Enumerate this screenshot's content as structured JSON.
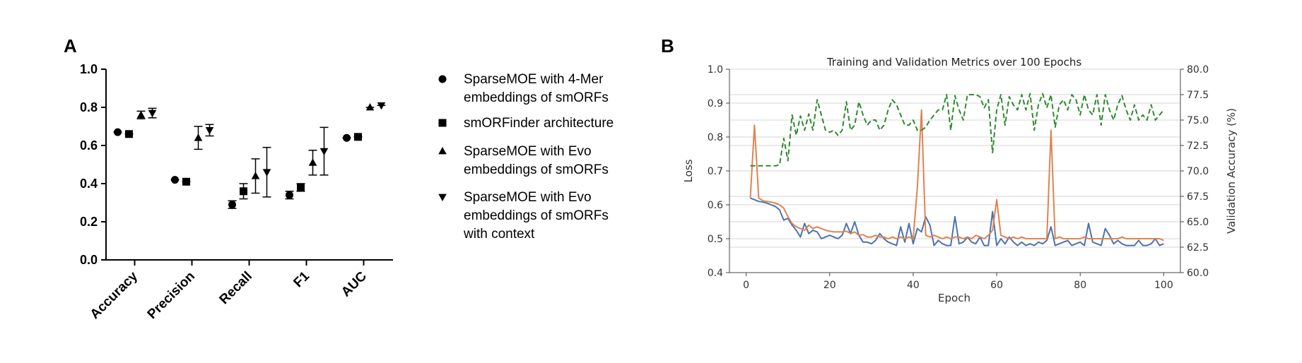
{
  "panel_a": {
    "label": "A",
    "legend": [
      {
        "marker": "circle",
        "lines": [
          "SparseMOE with 4-Mer",
          "embeddings of smORFs"
        ]
      },
      {
        "marker": "square",
        "lines": [
          "smORFinder architecture"
        ]
      },
      {
        "marker": "triangle-up",
        "lines": [
          "SparseMOE with Evo",
          "embeddings of smORFs"
        ]
      },
      {
        "marker": "triangle-down",
        "lines": [
          "SparseMOE with Evo",
          "embeddings of smORFs",
          "with context"
        ]
      }
    ]
  },
  "panel_b": {
    "label": "B"
  },
  "chart_data": [
    {
      "type": "scatter",
      "title": "",
      "xlabel": "",
      "ylabel": "",
      "categories": [
        "Accuracy",
        "Precision",
        "Recall",
        "F1",
        "AUC"
      ],
      "ylim": [
        0,
        1.0
      ],
      "yticks": [
        "0.0",
        "0.2",
        "0.4",
        "0.6",
        "0.8",
        "1.0"
      ],
      "error_bars": true,
      "series": [
        {
          "marker": "circle",
          "values": [
            0.67,
            0.42,
            0.29,
            0.34,
            0.64
          ],
          "err": [
            0.005,
            0.005,
            0.02,
            0.02,
            0.01
          ]
        },
        {
          "marker": "square",
          "values": [
            0.66,
            0.41,
            0.36,
            0.38,
            0.645
          ],
          "err": [
            0.005,
            0.005,
            0.04,
            0.02,
            0.005
          ]
        },
        {
          "marker": "triangle-up",
          "values": [
            0.76,
            0.64,
            0.44,
            0.51,
            0.8
          ],
          "err": [
            0.02,
            0.06,
            0.09,
            0.065,
            0.01
          ]
        },
        {
          "marker": "triangle-down",
          "values": [
            0.77,
            0.68,
            0.46,
            0.57,
            0.81
          ],
          "err": [
            0.025,
            0.03,
            0.13,
            0.125,
            0.01
          ]
        }
      ]
    },
    {
      "type": "line",
      "title": "Training and Validation Metrics over 100 Epochs",
      "xlabel": "Epoch",
      "ylabel": "Loss",
      "y2label": "Validation Accuracy (%)",
      "xlim": [
        -4,
        104
      ],
      "ylim": [
        0.4,
        1.0
      ],
      "y2lim": [
        60.0,
        80.0
      ],
      "xticks": [
        "0",
        "20",
        "40",
        "60",
        "80",
        "100"
      ],
      "yticks": [
        "0.4",
        "0.5",
        "0.6",
        "0.7",
        "0.8",
        "0.9",
        "1.0"
      ],
      "y2ticks": [
        "60.0",
        "62.5",
        "65.0",
        "67.5",
        "70.0",
        "72.5",
        "75.0",
        "77.5",
        "80.0"
      ],
      "grid": true,
      "colors": {
        "train_loss": "#4c72b0",
        "val_loss": "#dd8452",
        "val_acc": "#2e8b2e"
      },
      "x": [
        1,
        2,
        3,
        4,
        5,
        6,
        7,
        8,
        9,
        10,
        11,
        12,
        13,
        14,
        15,
        16,
        17,
        18,
        19,
        20,
        21,
        22,
        23,
        24,
        25,
        26,
        27,
        28,
        29,
        30,
        31,
        32,
        33,
        34,
        35,
        36,
        37,
        38,
        39,
        40,
        41,
        42,
        43,
        44,
        45,
        46,
        47,
        48,
        49,
        50,
        51,
        52,
        53,
        54,
        55,
        56,
        57,
        58,
        59,
        60,
        61,
        62,
        63,
        64,
        65,
        66,
        67,
        68,
        69,
        70,
        71,
        72,
        73,
        74,
        75,
        76,
        77,
        78,
        79,
        80,
        81,
        82,
        83,
        84,
        85,
        86,
        87,
        88,
        89,
        90,
        91,
        92,
        93,
        94,
        95,
        96,
        97,
        98,
        99,
        100
      ],
      "series": [
        {
          "role": "train_loss",
          "axis": "left",
          "style": "solid",
          "values": [
            0.62,
            0.615,
            0.61,
            0.608,
            0.605,
            0.6,
            0.595,
            0.585,
            0.555,
            0.56,
            0.54,
            0.525,
            0.505,
            0.545,
            0.515,
            0.525,
            0.52,
            0.5,
            0.505,
            0.51,
            0.505,
            0.5,
            0.51,
            0.545,
            0.515,
            0.55,
            0.51,
            0.49,
            0.49,
            0.485,
            0.495,
            0.515,
            0.5,
            0.49,
            0.485,
            0.48,
            0.535,
            0.49,
            0.545,
            0.485,
            0.53,
            0.52,
            0.565,
            0.54,
            0.48,
            0.495,
            0.485,
            0.48,
            0.48,
            0.565,
            0.485,
            0.49,
            0.505,
            0.49,
            0.485,
            0.505,
            0.48,
            0.48,
            0.58,
            0.48,
            0.5,
            0.485,
            0.505,
            0.49,
            0.48,
            0.49,
            0.48,
            0.485,
            0.48,
            0.49,
            0.485,
            0.495,
            0.535,
            0.48,
            0.485,
            0.49,
            0.495,
            0.48,
            0.485,
            0.49,
            0.48,
            0.545,
            0.49,
            0.485,
            0.48,
            0.53,
            0.51,
            0.485,
            0.495,
            0.485,
            0.48,
            0.48,
            0.48,
            0.495,
            0.48,
            0.48,
            0.485,
            0.5,
            0.48,
            0.485
          ]
        },
        {
          "role": "val_loss",
          "axis": "left",
          "style": "solid",
          "values": [
            0.62,
            0.835,
            0.62,
            0.612,
            0.61,
            0.608,
            0.605,
            0.6,
            0.59,
            0.565,
            0.545,
            0.535,
            0.53,
            0.525,
            0.54,
            0.53,
            0.535,
            0.53,
            0.525,
            0.522,
            0.52,
            0.52,
            0.52,
            0.522,
            0.515,
            0.52,
            0.51,
            0.512,
            0.505,
            0.505,
            0.51,
            0.505,
            0.505,
            0.5,
            0.505,
            0.5,
            0.505,
            0.5,
            0.505,
            0.5,
            0.65,
            0.88,
            0.51,
            0.505,
            0.51,
            0.505,
            0.5,
            0.505,
            0.5,
            0.505,
            0.505,
            0.5,
            0.505,
            0.5,
            0.51,
            0.505,
            0.5,
            0.51,
            0.525,
            0.615,
            0.51,
            0.505,
            0.5,
            0.505,
            0.5,
            0.505,
            0.5,
            0.5,
            0.5,
            0.5,
            0.5,
            0.5,
            0.82,
            0.5,
            0.505,
            0.5,
            0.5,
            0.5,
            0.5,
            0.5,
            0.505,
            0.5,
            0.5,
            0.5,
            0.5,
            0.5,
            0.5,
            0.5,
            0.5,
            0.505,
            0.5,
            0.5,
            0.5,
            0.5,
            0.5,
            0.5,
            0.5,
            0.5,
            0.5,
            0.495
          ]
        },
        {
          "role": "val_acc",
          "axis": "right",
          "style": "dashed",
          "values": [
            70.5,
            70.5,
            70.5,
            70.5,
            70.5,
            70.5,
            70.5,
            70.6,
            73.2,
            71.0,
            75.5,
            73.5,
            75.4,
            74.0,
            75.6,
            74.0,
            77.0,
            75.5,
            74.0,
            73.8,
            74.0,
            73.5,
            74.0,
            76.8,
            74.0,
            74.5,
            76.8,
            75.5,
            74.5,
            75.0,
            75.0,
            74.0,
            74.5,
            76.0,
            77.0,
            76.5,
            75.5,
            74.5,
            74.5,
            75.0,
            74.0,
            74.0,
            74.3,
            75.0,
            75.5,
            76.0,
            76.0,
            77.5,
            74.0,
            77.4,
            76.0,
            75.0,
            77.5,
            77.5,
            77.5,
            77.3,
            76.2,
            77.0,
            71.8,
            76.0,
            77.5,
            74.5,
            77.3,
            76.5,
            76.0,
            77.5,
            76.0,
            77.6,
            74.0,
            76.5,
            77.6,
            76.2,
            77.5,
            74.3,
            76.5,
            77.0,
            76.0,
            77.5,
            77.0,
            75.5,
            77.5,
            76.0,
            75.5,
            77.5,
            74.5,
            77.5,
            76.0,
            75.0,
            76.5,
            77.4,
            76.0,
            75.0,
            76.5,
            75.0,
            75.5,
            75.0,
            76.5,
            75.0,
            75.5,
            76.0
          ]
        }
      ]
    }
  ]
}
